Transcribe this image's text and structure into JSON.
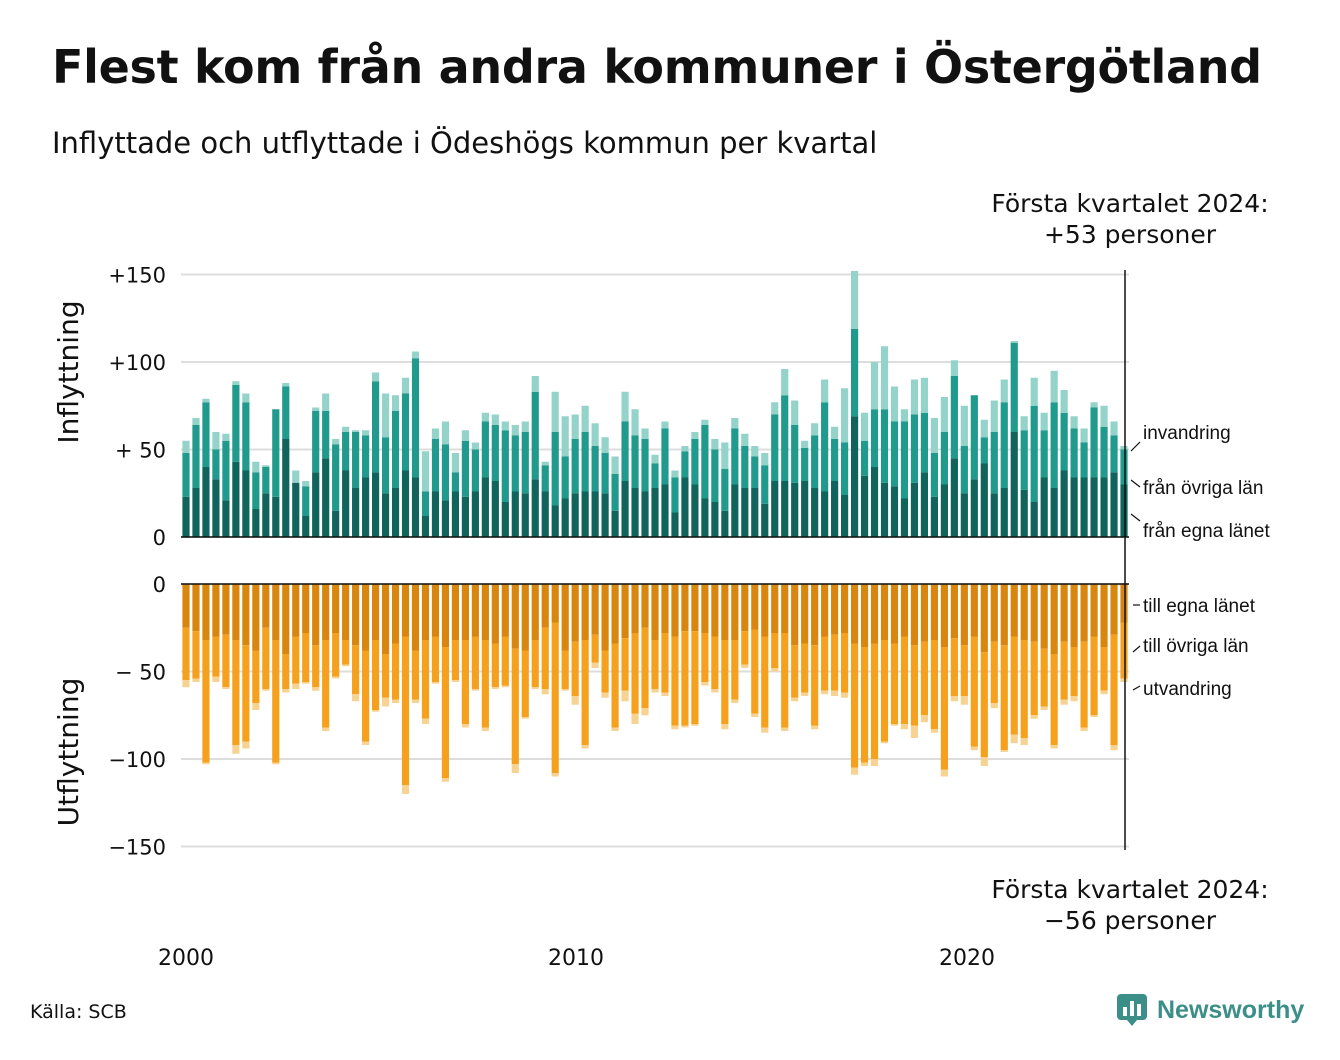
{
  "title": "Flest kom från andra kommuner i Östergötland",
  "subtitle": "Inflyttade och utflyttade i Ödeshögs kommun per kvartal",
  "source": "Källa: SCB",
  "brand": {
    "name": "Newsworthy",
    "icon": "newsworthy-logo-icon"
  },
  "colors": {
    "in_own": "#10645b",
    "in_other": "#1f9a8c",
    "in_immig": "#93d3c9",
    "out_own": "#d8860e",
    "out_other": "#f5a11d",
    "out_emig": "#f7d393",
    "grid": "#dddddd",
    "axis": "#111111"
  },
  "chart_data": [
    {
      "type": "bar",
      "stacked": true,
      "panel": "inflyttning",
      "ylabel": "Inflyttning",
      "ylim": [
        0,
        150
      ],
      "yticks": [
        0,
        50,
        100,
        150
      ],
      "ytick_labels": [
        "0",
        "+ 50",
        "+100",
        "+150"
      ],
      "x_start": "2000 Q1",
      "x_end": "2024 Q1",
      "xtick_labels": [
        "2000",
        "2010",
        "2020"
      ],
      "grid": true,
      "annotation": {
        "line1": "Första kvartalet 2024:",
        "line2": "+53 personer"
      },
      "series": [
        {
          "name": "från egna länet",
          "values": [
            23,
            28,
            40,
            33,
            21,
            43,
            38,
            16,
            25,
            23,
            56,
            31,
            12,
            37,
            45,
            15,
            38,
            28,
            34,
            37,
            25,
            28,
            38,
            34,
            12,
            26,
            21,
            26,
            23,
            26,
            34,
            32,
            20,
            26,
            25,
            33,
            26,
            18,
            22,
            25,
            26,
            26,
            25,
            15,
            32,
            28,
            26,
            28,
            30,
            14,
            34,
            30,
            22,
            20,
            15,
            30,
            28,
            28,
            19,
            32,
            32,
            31,
            32,
            28,
            26,
            32,
            24,
            69,
            35,
            40,
            31,
            29,
            22,
            31,
            37,
            23,
            30,
            45,
            25,
            33,
            42,
            25,
            28,
            60,
            27,
            20,
            34,
            28,
            38,
            34,
            34,
            34,
            34,
            37,
            30
          ]
        },
        {
          "name": "från övriga län",
          "values": [
            25,
            36,
            37,
            17,
            34,
            44,
            39,
            21,
            15,
            50,
            30,
            0,
            17,
            35,
            27,
            38,
            22,
            32,
            24,
            52,
            32,
            44,
            44,
            68,
            14,
            30,
            32,
            11,
            32,
            24,
            32,
            32,
            41,
            32,
            35,
            50,
            15,
            42,
            24,
            31,
            34,
            26,
            23,
            21,
            34,
            30,
            30,
            14,
            32,
            20,
            15,
            26,
            42,
            30,
            24,
            32,
            24,
            18,
            22,
            38,
            49,
            33,
            19,
            30,
            51,
            24,
            30,
            50,
            20,
            33,
            42,
            37,
            44,
            39,
            34,
            25,
            30,
            47,
            27,
            48,
            15,
            35,
            49,
            51,
            34,
            55,
            27,
            49,
            33,
            28,
            20,
            40,
            29,
            21,
            20
          ]
        },
        {
          "name": "invandring",
          "values": [
            7,
            4,
            2,
            10,
            4,
            2,
            5,
            6,
            1,
            0,
            2,
            7,
            3,
            2,
            10,
            3,
            3,
            1,
            3,
            5,
            25,
            9,
            9,
            4,
            23,
            6,
            13,
            11,
            6,
            4,
            5,
            6,
            5,
            6,
            6,
            9,
            2,
            23,
            23,
            14,
            15,
            13,
            9,
            10,
            17,
            15,
            6,
            5,
            4,
            4,
            3,
            4,
            3,
            6,
            15,
            6,
            7,
            6,
            7,
            7,
            15,
            14,
            4,
            7,
            13,
            7,
            31,
            33,
            16,
            27,
            36,
            20,
            7,
            20,
            20,
            20,
            20,
            9,
            23,
            0,
            10,
            18,
            13,
            1,
            8,
            16,
            10,
            18,
            13,
            7,
            8,
            3,
            12,
            8,
            2
          ]
        }
      ]
    },
    {
      "type": "bar",
      "stacked": true,
      "panel": "utflyttning",
      "ylabel": "Utflyttning",
      "ylim": [
        -150,
        0
      ],
      "yticks": [
        0,
        -50,
        -100,
        -150
      ],
      "ytick_labels": [
        "0",
        "− 50",
        "−100",
        "−150"
      ],
      "x_start": "2000 Q1",
      "x_end": "2024 Q1",
      "xtick_labels": [
        "2000",
        "2010",
        "2020"
      ],
      "grid": true,
      "annotation": {
        "line1": "Första kvartalet 2024:",
        "line2": "−56 personer"
      },
      "series": [
        {
          "name": "till egna länet",
          "values": [
            -25,
            -27,
            -32,
            -30,
            -29,
            -32,
            -35,
            -38,
            -25,
            -32,
            -40,
            -30,
            -28,
            -35,
            -32,
            -28,
            -32,
            -35,
            -38,
            -32,
            -40,
            -34,
            -30,
            -38,
            -32,
            -30,
            -36,
            -32,
            -32,
            -30,
            -32,
            -34,
            -30,
            -37,
            -38,
            -32,
            -25,
            -22,
            -38,
            -33,
            -32,
            -29,
            -38,
            -34,
            -31,
            -28,
            -25,
            -32,
            -28,
            -30,
            -27,
            -27,
            -28,
            -30,
            -32,
            -32,
            -27,
            -26,
            -30,
            -28,
            -28,
            -35,
            -34,
            -35,
            -30,
            -29,
            -28,
            -34,
            -36,
            -34,
            -32,
            -34,
            -30,
            -35,
            -33,
            -32,
            -36,
            -31,
            -35,
            -30,
            -39,
            -33,
            -35,
            -30,
            -32,
            -33,
            -37,
            -40,
            -33,
            -36,
            -33,
            -30,
            -36,
            -29,
            -22
          ]
        },
        {
          "name": "till övriga län",
          "values": [
            -30,
            -27,
            -70,
            -23,
            -30,
            -60,
            -55,
            -30,
            -35,
            -70,
            -20,
            -27,
            -28,
            -24,
            -50,
            -25,
            -14,
            -28,
            -52,
            -40,
            -25,
            -32,
            -85,
            -28,
            -45,
            -26,
            -75,
            -23,
            -48,
            -30,
            -50,
            -25,
            -28,
            -66,
            -38,
            -27,
            -35,
            -86,
            -22,
            -31,
            -60,
            -16,
            -24,
            -48,
            -30,
            -46,
            -46,
            -28,
            -34,
            -51,
            -54,
            -53,
            -28,
            -30,
            -48,
            -34,
            -19,
            -48,
            -52,
            -20,
            -54,
            -30,
            -28,
            -46,
            -31,
            -32,
            -34,
            -71,
            -66,
            -66,
            -58,
            -46,
            -50,
            -46,
            -42,
            -51,
            -70,
            -33,
            -29,
            -63,
            -60,
            -35,
            -60,
            -56,
            -56,
            -42,
            -33,
            -52,
            -33,
            -28,
            -49,
            -45,
            -25,
            -63,
            -32
          ]
        },
        {
          "name": "utvandring",
          "values": [
            -4,
            -2,
            -1,
            -3,
            -1,
            -5,
            -4,
            -4,
            -1,
            -1,
            -2,
            -3,
            -1,
            -2,
            -2,
            -1,
            -1,
            -4,
            -2,
            -1,
            -5,
            -2,
            -5,
            -2,
            -3,
            -1,
            -2,
            -1,
            -2,
            -1,
            -2,
            -1,
            -1,
            -5,
            -1,
            -1,
            -3,
            -2,
            -1,
            -5,
            -2,
            -3,
            -3,
            -2,
            -6,
            -6,
            -4,
            -2,
            -2,
            -2,
            -1,
            -1,
            -2,
            -2,
            -3,
            -2,
            -2,
            -2,
            -3,
            -2,
            -2,
            -2,
            -2,
            -2,
            -2,
            -3,
            -3,
            -4,
            -2,
            -4,
            -1,
            -1,
            -3,
            -7,
            -4,
            -2,
            -4,
            -3,
            -5,
            -2,
            -5,
            -3,
            -1,
            -5,
            -4,
            -2,
            -2,
            -2,
            -3,
            -3,
            -2,
            -1,
            -2,
            -3,
            -2
          ]
        }
      ]
    }
  ]
}
